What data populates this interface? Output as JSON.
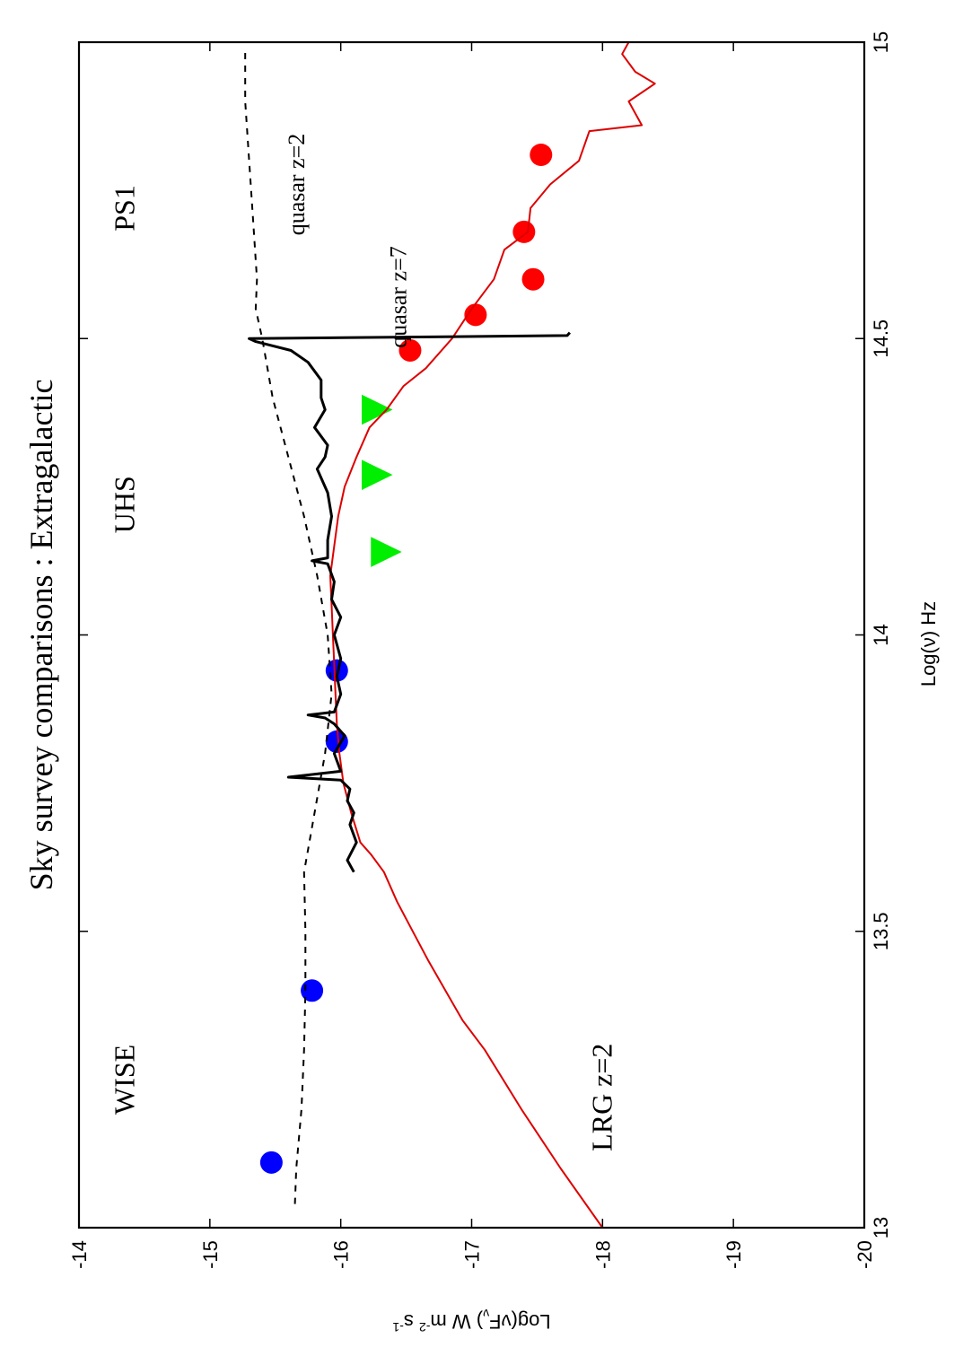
{
  "chart_data": {
    "type": "scatter",
    "title": "Sky survey comparisons : Extragalactic",
    "xlabel": "Log(ν) Hz",
    "ylabel": "Log(νF_ν) W m^-2 s^-1",
    "ylabel_parts": {
      "a": "Log(νF",
      "b": "ν",
      "c": ") W m",
      "d": "-2",
      "e": " s",
      "f": "-1"
    },
    "xlim": [
      13,
      15
    ],
    "ylim": [
      -20,
      -14
    ],
    "xticks": [
      13,
      13.5,
      14,
      14.5,
      15
    ],
    "xtick_labels": [
      "13",
      "13.5",
      "14",
      "14.5",
      "15"
    ],
    "yticks": [
      -20,
      -19,
      -18,
      -17,
      -16,
      -15,
      -14
    ],
    "ytick_labels": [
      "-20",
      "-19",
      "-18",
      "-17",
      "-16",
      "-15",
      "-14"
    ],
    "orientation": "rotated 90° counter-clockwise",
    "colors": {
      "wise": "#0000ff",
      "uhs": "#00ee00",
      "ps1": "#ff0000",
      "lrg": "#dd0000",
      "quasar_z7": "#000000",
      "quasar_z2": "#000000"
    },
    "annotations": [
      {
        "text": "WISE",
        "x": 13.25,
        "y": -14.42
      },
      {
        "text": "UHS",
        "x": 14.22,
        "y": -14.42
      },
      {
        "text": "PS1",
        "x": 14.72,
        "y": -14.42
      },
      {
        "text": "LRG z=2",
        "x": 13.22,
        "y": -18.07
      },
      {
        "text": "quasar z=2",
        "x": 14.76,
        "y": -15.72
      },
      {
        "text": "quasar z=7",
        "x": 14.57,
        "y": -16.5
      }
    ],
    "series": [
      {
        "name": "WISE",
        "kind": "scatter",
        "marker": "circle",
        "x": [
          13.11,
          13.4,
          13.82,
          13.94
        ],
        "y": [
          -15.47,
          -15.78,
          -15.97,
          -15.97
        ]
      },
      {
        "name": "UHS",
        "kind": "scatter",
        "marker": "triangle",
        "x": [
          14.14,
          14.27,
          14.38
        ],
        "y": [
          -16.34,
          -16.27,
          -16.27
        ]
      },
      {
        "name": "PS1",
        "kind": "scatter",
        "marker": "circle",
        "x": [
          14.48,
          14.54,
          14.6,
          14.68,
          14.81
        ],
        "y": [
          -16.53,
          -17.03,
          -17.47,
          -17.4,
          -17.53
        ]
      },
      {
        "name": "LRG z=2",
        "kind": "line",
        "x": [
          13.0,
          13.1,
          13.2,
          13.3,
          13.35,
          13.4,
          13.45,
          13.5,
          13.55,
          13.6,
          13.63,
          13.65,
          13.7,
          13.75,
          13.8,
          13.85,
          13.9,
          13.95,
          14.0,
          14.05,
          14.1,
          14.15,
          14.2,
          14.25,
          14.3,
          14.35,
          14.38,
          14.42,
          14.45,
          14.5,
          14.55,
          14.6,
          14.65,
          14.68,
          14.72,
          14.76,
          14.8,
          14.85,
          14.86,
          14.9,
          14.93,
          14.95,
          14.98,
          15.0
        ],
        "y": [
          -18.0,
          -17.68,
          -17.38,
          -17.1,
          -16.93,
          -16.8,
          -16.67,
          -16.55,
          -16.43,
          -16.33,
          -16.23,
          -16.15,
          -16.08,
          -16.02,
          -15.99,
          -15.97,
          -15.96,
          -15.95,
          -15.94,
          -15.93,
          -15.92,
          -15.95,
          -15.98,
          -16.03,
          -16.12,
          -16.22,
          -16.35,
          -16.48,
          -16.65,
          -16.85,
          -17.0,
          -17.17,
          -17.25,
          -17.43,
          -17.45,
          -17.6,
          -17.82,
          -17.9,
          -18.3,
          -18.2,
          -18.4,
          -18.25,
          -18.15,
          -18.2
        ]
      },
      {
        "name": "quasar z=7",
        "kind": "line",
        "x": [
          13.6,
          13.62,
          13.65,
          13.68,
          13.7,
          13.72,
          13.74,
          13.755,
          13.76,
          13.77,
          13.8,
          13.83,
          13.85,
          13.86,
          13.865,
          13.87,
          13.9,
          13.93,
          13.96,
          14.0,
          14.03,
          14.06,
          14.09,
          14.12,
          14.125,
          14.13,
          14.16,
          14.2,
          14.24,
          14.28,
          14.3,
          14.32,
          14.35,
          14.38,
          14.4,
          14.43,
          14.46,
          14.48,
          14.495,
          14.5,
          14.505,
          14.51
        ],
        "y": [
          -16.1,
          -16.05,
          -16.12,
          -16.07,
          -16.1,
          -16.05,
          -16.07,
          -16.0,
          -15.6,
          -16.0,
          -15.95,
          -16.03,
          -15.95,
          -15.88,
          -15.75,
          -15.95,
          -16.0,
          -15.97,
          -16.0,
          -15.95,
          -16.0,
          -15.93,
          -15.95,
          -15.9,
          -15.78,
          -15.9,
          -15.9,
          -15.93,
          -15.9,
          -15.82,
          -15.88,
          -15.9,
          -15.8,
          -15.88,
          -15.85,
          -15.85,
          -15.75,
          -15.62,
          -15.35,
          -15.3,
          -17.73,
          -17.75
        ]
      },
      {
        "name": "quasar z=2",
        "kind": "dashed-line",
        "x": [
          13.04,
          13.1,
          13.2,
          13.3,
          13.4,
          13.5,
          13.6,
          13.7,
          13.8,
          13.9,
          14.0,
          14.1,
          14.2,
          14.3,
          14.4,
          14.5,
          14.55,
          14.6,
          14.7,
          14.8,
          14.9,
          14.99
        ],
        "y": [
          -15.65,
          -15.66,
          -15.7,
          -15.72,
          -15.73,
          -15.73,
          -15.72,
          -15.8,
          -15.88,
          -15.93,
          -15.9,
          -15.82,
          -15.72,
          -15.6,
          -15.48,
          -15.4,
          -15.35,
          -15.36,
          -15.33,
          -15.3,
          -15.27,
          -15.27
        ]
      }
    ]
  }
}
